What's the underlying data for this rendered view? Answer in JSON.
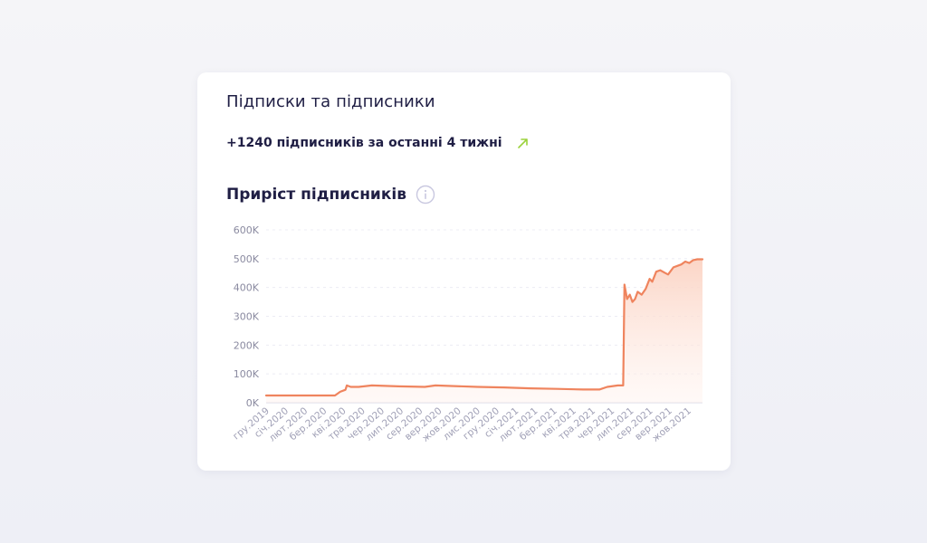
{
  "card": {
    "title": "Підписки та підписники",
    "subscribers_growth_text": "+1240 підписників за останні  4 тижні",
    "trend_icon": "arrow-up-right-icon",
    "chart_title": "Приріст підписників",
    "info_icon": "info-icon"
  },
  "colors": {
    "line": "#ef845e",
    "area_top": "#fbd3c3",
    "trend_arrow": "#9bd23c",
    "text_dark": "#1f1e44",
    "tick": "#8a8aa0"
  },
  "chart_data": {
    "type": "area",
    "title": "Приріст підписників",
    "xlabel": "",
    "ylabel": "",
    "ylim": [
      0,
      600000
    ],
    "y_ticks": [
      0,
      100000,
      200000,
      300000,
      400000,
      500000,
      600000
    ],
    "y_tick_labels": [
      "0K",
      "100K",
      "200K",
      "300K",
      "400K",
      "500K",
      "600K"
    ],
    "grid": true,
    "x_tick_labels": [
      "гру.2019",
      "січ.2020",
      "лют.2020",
      "бер.2020",
      "кві.2020",
      "тра.2020",
      "чер.2020",
      "лип.2020",
      "сер.2020",
      "вер.2020",
      "жов.2020",
      "лис.2020",
      "гру.2020",
      "січ.2021",
      "лют.2021",
      "бер.2021",
      "кві.2021",
      "тра.2021",
      "чер.2021",
      "лип.2021",
      "сер.2021",
      "вер.2021",
      "жов.2021"
    ],
    "series": [
      {
        "x": [
          0,
          1,
          2,
          2.6,
          2.8,
          3.0,
          3.05,
          3.2,
          3.5,
          4.0,
          5.0,
          6.0,
          6.4,
          7.0,
          8.0,
          9.0,
          10.0,
          11.0,
          12.0,
          12.6,
          12.9,
          13.3,
          13.5,
          13.55,
          13.65,
          13.75,
          13.85,
          13.95,
          14.05,
          14.2,
          14.35,
          14.5,
          14.6,
          14.75,
          14.9,
          15.1,
          15.2,
          15.4,
          15.55,
          15.7,
          15.85,
          16.0,
          16.15,
          16.3,
          16.5
        ],
        "values": [
          25000,
          25000,
          25000,
          25000,
          38000,
          45000,
          60000,
          55000,
          55000,
          60000,
          57000,
          55000,
          60000,
          58000,
          55000,
          53000,
          50000,
          48000,
          46000,
          46000,
          55000,
          60000,
          60000,
          410000,
          360000,
          375000,
          350000,
          360000,
          385000,
          375000,
          395000,
          430000,
          420000,
          455000,
          460000,
          450000,
          445000,
          470000,
          475000,
          480000,
          490000,
          485000,
          495000,
          498000,
          498000
        ]
      }
    ]
  }
}
